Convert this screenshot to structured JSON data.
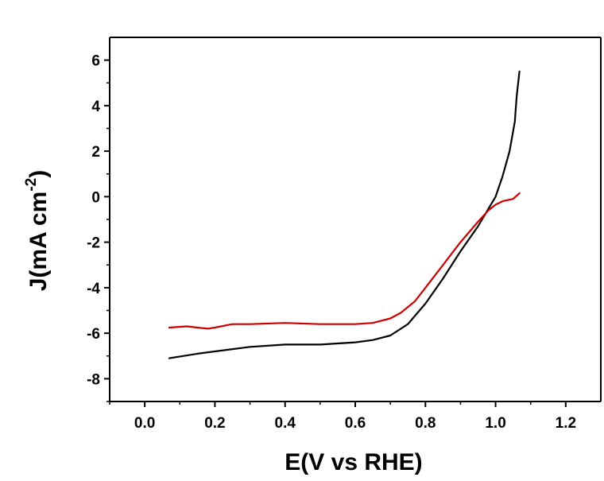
{
  "chart_data": {
    "type": "line",
    "title": "",
    "xlabel": "E(V vs RHE)",
    "ylabel": {
      "main": "J(mA cm",
      "sup": "-2",
      "close": ")"
    },
    "xlim": [
      -0.1,
      1.3
    ],
    "ylim": [
      -9,
      7
    ],
    "xticks": [
      0.0,
      0.2,
      0.4,
      0.6,
      0.8,
      1.0,
      1.2
    ],
    "xtick_labels": [
      "0.0",
      "0.2",
      "0.4",
      "0.6",
      "0.8",
      "1.0",
      "1.2"
    ],
    "yticks": [
      -8,
      -6,
      -4,
      -2,
      0,
      2,
      4,
      6
    ],
    "ytick_labels": [
      "-8",
      "-6",
      "-4",
      "-2",
      "0",
      "2",
      "4",
      "6"
    ],
    "grid": false,
    "series": [
      {
        "color": "#000000",
        "points": [
          [
            0.07,
            -7.1
          ],
          [
            0.15,
            -6.9
          ],
          [
            0.2,
            -6.8
          ],
          [
            0.3,
            -6.6
          ],
          [
            0.4,
            -6.5
          ],
          [
            0.5,
            -6.5
          ],
          [
            0.6,
            -6.4
          ],
          [
            0.65,
            -6.3
          ],
          [
            0.7,
            -6.1
          ],
          [
            0.75,
            -5.6
          ],
          [
            0.8,
            -4.7
          ],
          [
            0.85,
            -3.6
          ],
          [
            0.9,
            -2.4
          ],
          [
            0.95,
            -1.3
          ],
          [
            1.0,
            0.0
          ],
          [
            1.02,
            0.9
          ],
          [
            1.04,
            2.0
          ],
          [
            1.055,
            3.3
          ],
          [
            1.06,
            4.4
          ],
          [
            1.068,
            5.5
          ]
        ]
      },
      {
        "color": "#cc0000",
        "points": [
          [
            0.07,
            -5.75
          ],
          [
            0.12,
            -5.7
          ],
          [
            0.15,
            -5.75
          ],
          [
            0.18,
            -5.8
          ],
          [
            0.2,
            -5.75
          ],
          [
            0.25,
            -5.6
          ],
          [
            0.3,
            -5.6
          ],
          [
            0.4,
            -5.55
          ],
          [
            0.5,
            -5.6
          ],
          [
            0.6,
            -5.6
          ],
          [
            0.65,
            -5.55
          ],
          [
            0.7,
            -5.35
          ],
          [
            0.73,
            -5.1
          ],
          [
            0.77,
            -4.6
          ],
          [
            0.8,
            -4.0
          ],
          [
            0.85,
            -3.0
          ],
          [
            0.9,
            -2.0
          ],
          [
            0.95,
            -1.1
          ],
          [
            0.98,
            -0.6
          ],
          [
            1.0,
            -0.35
          ],
          [
            1.02,
            -0.2
          ],
          [
            1.05,
            -0.1
          ],
          [
            1.068,
            0.15
          ]
        ]
      }
    ]
  }
}
